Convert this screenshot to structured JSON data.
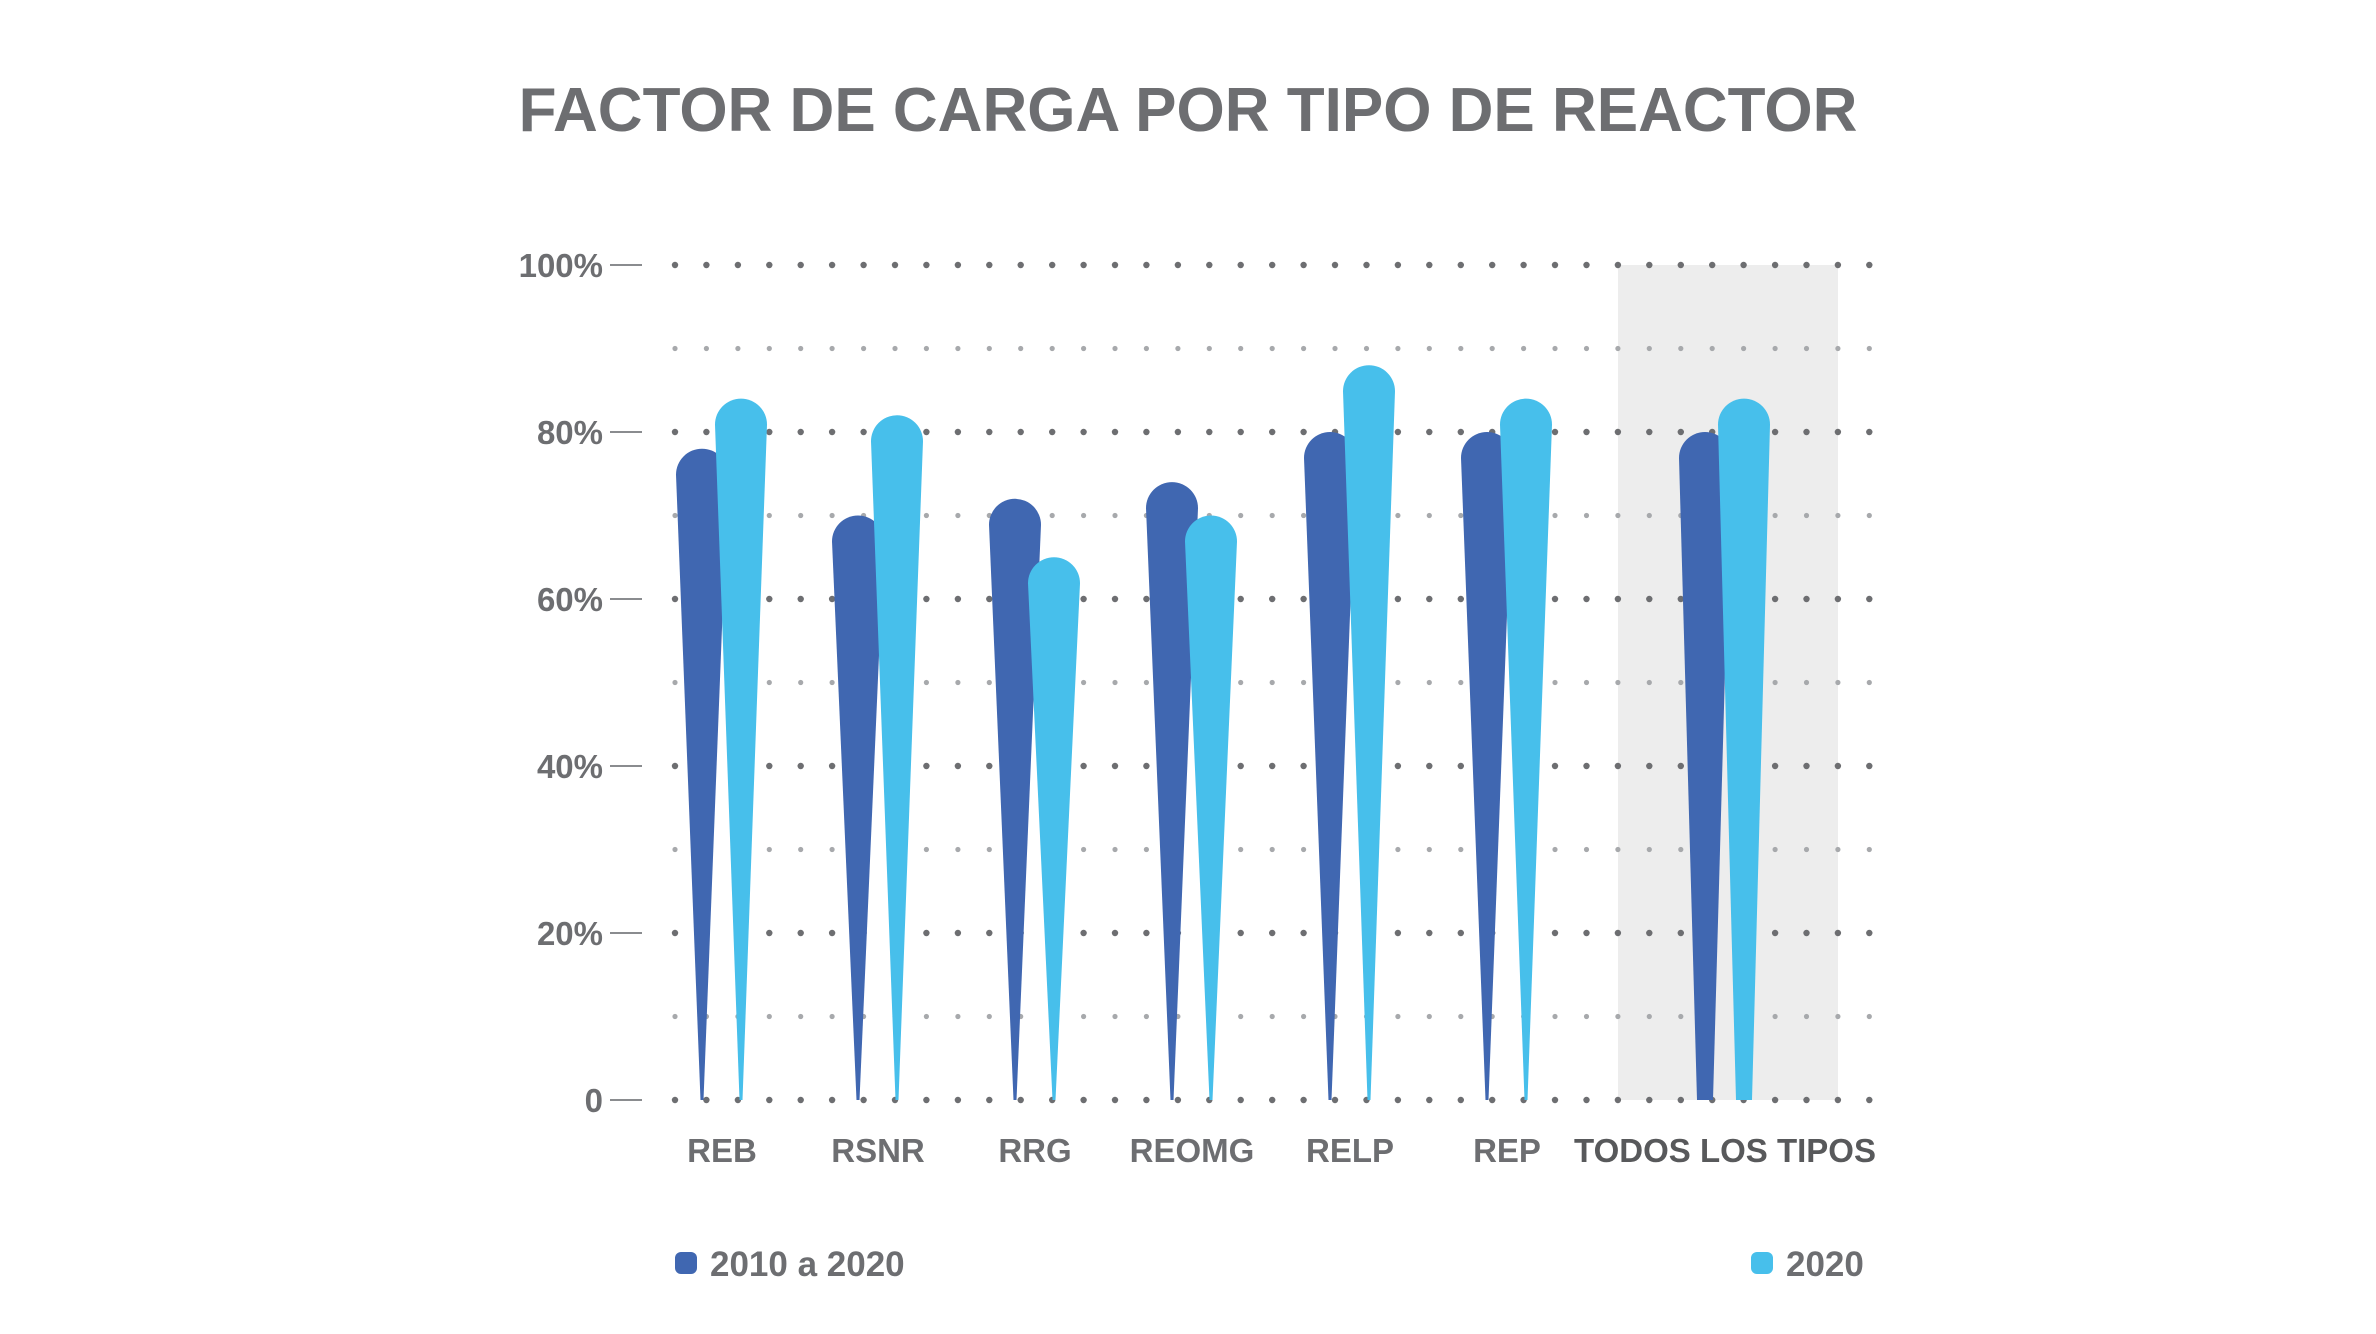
{
  "chart_data": {
    "type": "bar",
    "title": "FACTOR DE CARGA POR TIPO DE REACTOR",
    "xlabel": "",
    "ylabel": "",
    "ylim": [
      0,
      100
    ],
    "y_ticks": [
      "0",
      "20%",
      "40%",
      "60%",
      "80%",
      "100%"
    ],
    "categories": [
      "REB",
      "RSNR",
      "RRG",
      "REOMG",
      "RELP",
      "REP",
      "TODOS LOS TIPOS"
    ],
    "highlighted_category": "TODOS LOS TIPOS",
    "grid": "dotted",
    "legend_position": "bottom",
    "series": [
      {
        "name": "2010 a 2020",
        "color": "#4067b1",
        "values": [
          78,
          70,
          72,
          74,
          80,
          80,
          80
        ]
      },
      {
        "name": "2020",
        "color": "#47bfeb",
        "values": [
          84,
          82,
          65,
          70,
          88,
          84,
          84
        ]
      }
    ],
    "highlight_color": "#ededed",
    "text_color": "#6d6e71"
  }
}
